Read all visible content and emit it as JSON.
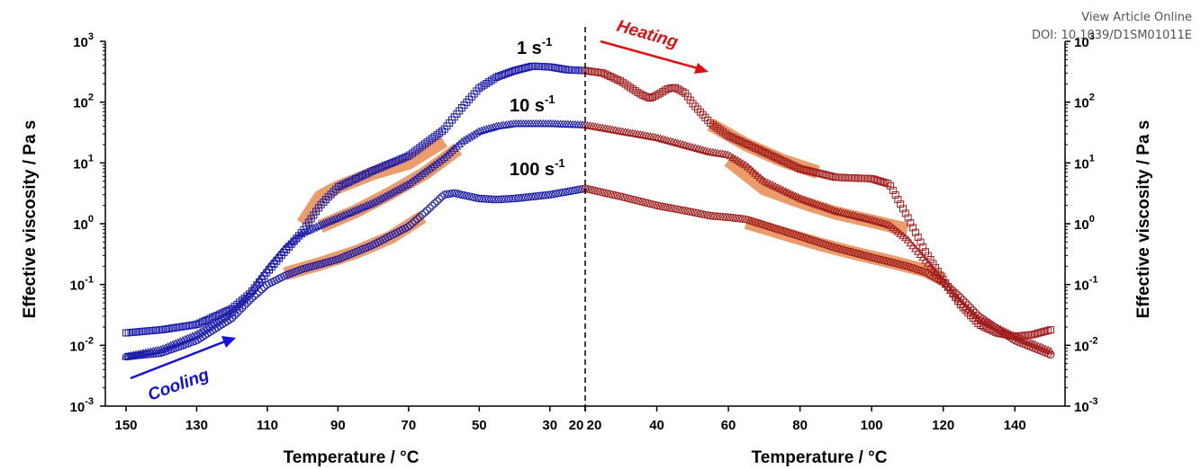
{
  "watermark": {
    "line1": "View Article Online",
    "line2": "DOI: 10.1039/D1SM01011E"
  },
  "colors": {
    "cooling": "#1a1aa8",
    "heating": "#a01c1c",
    "highlight": "#e8925a",
    "arrow_heating": "#e01010",
    "arrow_cooling": "#1010e0"
  },
  "chart_data": {
    "type": "scatter",
    "y_scale": "log",
    "ylim": [
      0.001,
      1000
    ],
    "y_tick_exponents": [
      -3,
      -2,
      -1,
      0,
      1,
      2,
      3
    ],
    "ylabel_left": "Effective viscosity / Pa s",
    "ylabel_right": "Effective viscosity / Pa s",
    "panels": [
      {
        "name": "cooling",
        "xlabel": "Temperature / °C",
        "xlim": [
          150,
          20
        ],
        "x_ticks": [
          150,
          130,
          110,
          90,
          70,
          50,
          30,
          20
        ]
      },
      {
        "name": "heating",
        "xlabel": "Temperature / °C",
        "xlim": [
          20,
          150
        ],
        "x_ticks": [
          20,
          40,
          60,
          80,
          100,
          120,
          140
        ]
      }
    ],
    "labels": [
      {
        "text": "1 s",
        "sup": "-1",
        "marker": "square"
      },
      {
        "text": "10 s",
        "sup": "-1",
        "marker": "triangle"
      },
      {
        "text": "100 s",
        "sup": "-1",
        "marker": "circle"
      }
    ],
    "series": [
      {
        "rate": "1 s-1",
        "panel": "cooling",
        "marker": "square",
        "points": [
          [
            150,
            0.016
          ],
          [
            140,
            0.018
          ],
          [
            130,
            0.022
          ],
          [
            120,
            0.04
          ],
          [
            115,
            0.07
          ],
          [
            110,
            0.16
          ],
          [
            105,
            0.35
          ],
          [
            100,
            0.75
          ],
          [
            95,
            2.0
          ],
          [
            90,
            4.0
          ],
          [
            80,
            7.5
          ],
          [
            70,
            13
          ],
          [
            60,
            35
          ],
          [
            55,
            80
          ],
          [
            50,
            170
          ],
          [
            45,
            260
          ],
          [
            40,
            330
          ],
          [
            35,
            390
          ],
          [
            30,
            380
          ],
          [
            25,
            340
          ],
          [
            20,
            330
          ]
        ]
      },
      {
        "rate": "10 s-1",
        "panel": "cooling",
        "marker": "triangle",
        "points": [
          [
            150,
            0.0065
          ],
          [
            140,
            0.0085
          ],
          [
            130,
            0.015
          ],
          [
            120,
            0.035
          ],
          [
            115,
            0.07
          ],
          [
            110,
            0.18
          ],
          [
            105,
            0.4
          ],
          [
            100,
            0.7
          ],
          [
            95,
            0.95
          ],
          [
            90,
            1.25
          ],
          [
            80,
            2.2
          ],
          [
            70,
            4.5
          ],
          [
            60,
            12
          ],
          [
            55,
            22
          ],
          [
            50,
            33
          ],
          [
            45,
            40
          ],
          [
            40,
            44
          ],
          [
            30,
            44
          ],
          [
            20,
            42
          ]
        ]
      },
      {
        "rate": "100 s-1",
        "panel": "cooling",
        "marker": "circle",
        "points": [
          [
            150,
            0.0065
          ],
          [
            140,
            0.0075
          ],
          [
            130,
            0.012
          ],
          [
            120,
            0.028
          ],
          [
            115,
            0.055
          ],
          [
            110,
            0.1
          ],
          [
            105,
            0.14
          ],
          [
            100,
            0.18
          ],
          [
            90,
            0.26
          ],
          [
            80,
            0.45
          ],
          [
            70,
            0.9
          ],
          [
            65,
            1.6
          ],
          [
            60,
            3.0
          ],
          [
            57,
            3.2
          ],
          [
            55,
            3.0
          ],
          [
            50,
            2.6
          ],
          [
            45,
            2.5
          ],
          [
            40,
            2.6
          ],
          [
            30,
            3.0
          ],
          [
            20,
            3.8
          ]
        ]
      },
      {
        "rate": "1 s-1",
        "panel": "heating",
        "marker": "square",
        "points": [
          [
            20,
            330
          ],
          [
            25,
            300
          ],
          [
            30,
            220
          ],
          [
            35,
            140
          ],
          [
            38,
            115
          ],
          [
            40,
            130
          ],
          [
            43,
            165
          ],
          [
            45,
            175
          ],
          [
            48,
            140
          ],
          [
            50,
            95
          ],
          [
            55,
            45
          ],
          [
            60,
            28
          ],
          [
            70,
            15
          ],
          [
            80,
            8
          ],
          [
            90,
            5.8
          ],
          [
            100,
            5.5
          ],
          [
            105,
            4.5
          ],
          [
            110,
            1.3
          ],
          [
            115,
            0.35
          ],
          [
            120,
            0.12
          ],
          [
            125,
            0.045
          ],
          [
            130,
            0.022
          ],
          [
            135,
            0.016
          ],
          [
            140,
            0.014
          ],
          [
            145,
            0.015
          ],
          [
            150,
            0.018
          ]
        ]
      },
      {
        "rate": "10 s-1",
        "panel": "heating",
        "marker": "triangle",
        "points": [
          [
            20,
            42
          ],
          [
            30,
            33
          ],
          [
            40,
            26
          ],
          [
            50,
            18
          ],
          [
            55,
            15
          ],
          [
            60,
            13.5
          ],
          [
            65,
            9
          ],
          [
            70,
            5
          ],
          [
            80,
            2.6
          ],
          [
            90,
            1.6
          ],
          [
            100,
            1.15
          ],
          [
            105,
            0.95
          ],
          [
            110,
            0.55
          ],
          [
            115,
            0.25
          ],
          [
            120,
            0.11
          ],
          [
            125,
            0.05
          ],
          [
            130,
            0.027
          ],
          [
            140,
            0.014
          ],
          [
            150,
            0.008
          ]
        ]
      },
      {
        "rate": "100 s-1",
        "panel": "heating",
        "marker": "circle",
        "points": [
          [
            20,
            3.8
          ],
          [
            30,
            2.8
          ],
          [
            40,
            2.0
          ],
          [
            50,
            1.55
          ],
          [
            55,
            1.35
          ],
          [
            60,
            1.28
          ],
          [
            65,
            1.18
          ],
          [
            70,
            0.95
          ],
          [
            80,
            0.62
          ],
          [
            90,
            0.4
          ],
          [
            100,
            0.28
          ],
          [
            110,
            0.2
          ],
          [
            115,
            0.16
          ],
          [
            120,
            0.11
          ],
          [
            125,
            0.06
          ],
          [
            130,
            0.03
          ],
          [
            140,
            0.012
          ],
          [
            150,
            0.007
          ]
        ]
      }
    ],
    "highlights": [
      {
        "panel": "cooling",
        "points": [
          [
            100,
            1.0
          ],
          [
            95,
            2.8
          ],
          [
            90,
            4.0
          ],
          [
            80,
            6.8
          ],
          [
            70,
            10
          ],
          [
            60,
            23
          ]
        ]
      },
      {
        "panel": "cooling",
        "points": [
          [
            95,
            0.9
          ],
          [
            85,
            1.6
          ],
          [
            75,
            3.2
          ],
          [
            65,
            7
          ],
          [
            56,
            17
          ]
        ]
      },
      {
        "panel": "cooling",
        "points": [
          [
            105,
            0.15
          ],
          [
            95,
            0.22
          ],
          [
            85,
            0.34
          ],
          [
            75,
            0.6
          ],
          [
            66,
            1.3
          ]
        ]
      },
      {
        "panel": "heating",
        "points": [
          [
            55,
            43
          ],
          [
            65,
            20
          ],
          [
            75,
            11
          ],
          [
            85,
            7
          ]
        ]
      },
      {
        "panel": "heating",
        "points": [
          [
            60,
            11
          ],
          [
            70,
            3.8
          ],
          [
            80,
            2.3
          ],
          [
            90,
            1.5
          ],
          [
            100,
            1.1
          ],
          [
            110,
            0.8
          ]
        ]
      },
      {
        "panel": "heating",
        "points": [
          [
            65,
            1.05
          ],
          [
            75,
            0.7
          ],
          [
            85,
            0.47
          ],
          [
            95,
            0.33
          ],
          [
            105,
            0.24
          ],
          [
            115,
            0.17
          ],
          [
            120,
            0.12
          ]
        ]
      }
    ],
    "annotations": [
      {
        "text": "Heating",
        "direction": "right"
      },
      {
        "text": "Cooling",
        "direction": "right"
      }
    ]
  }
}
